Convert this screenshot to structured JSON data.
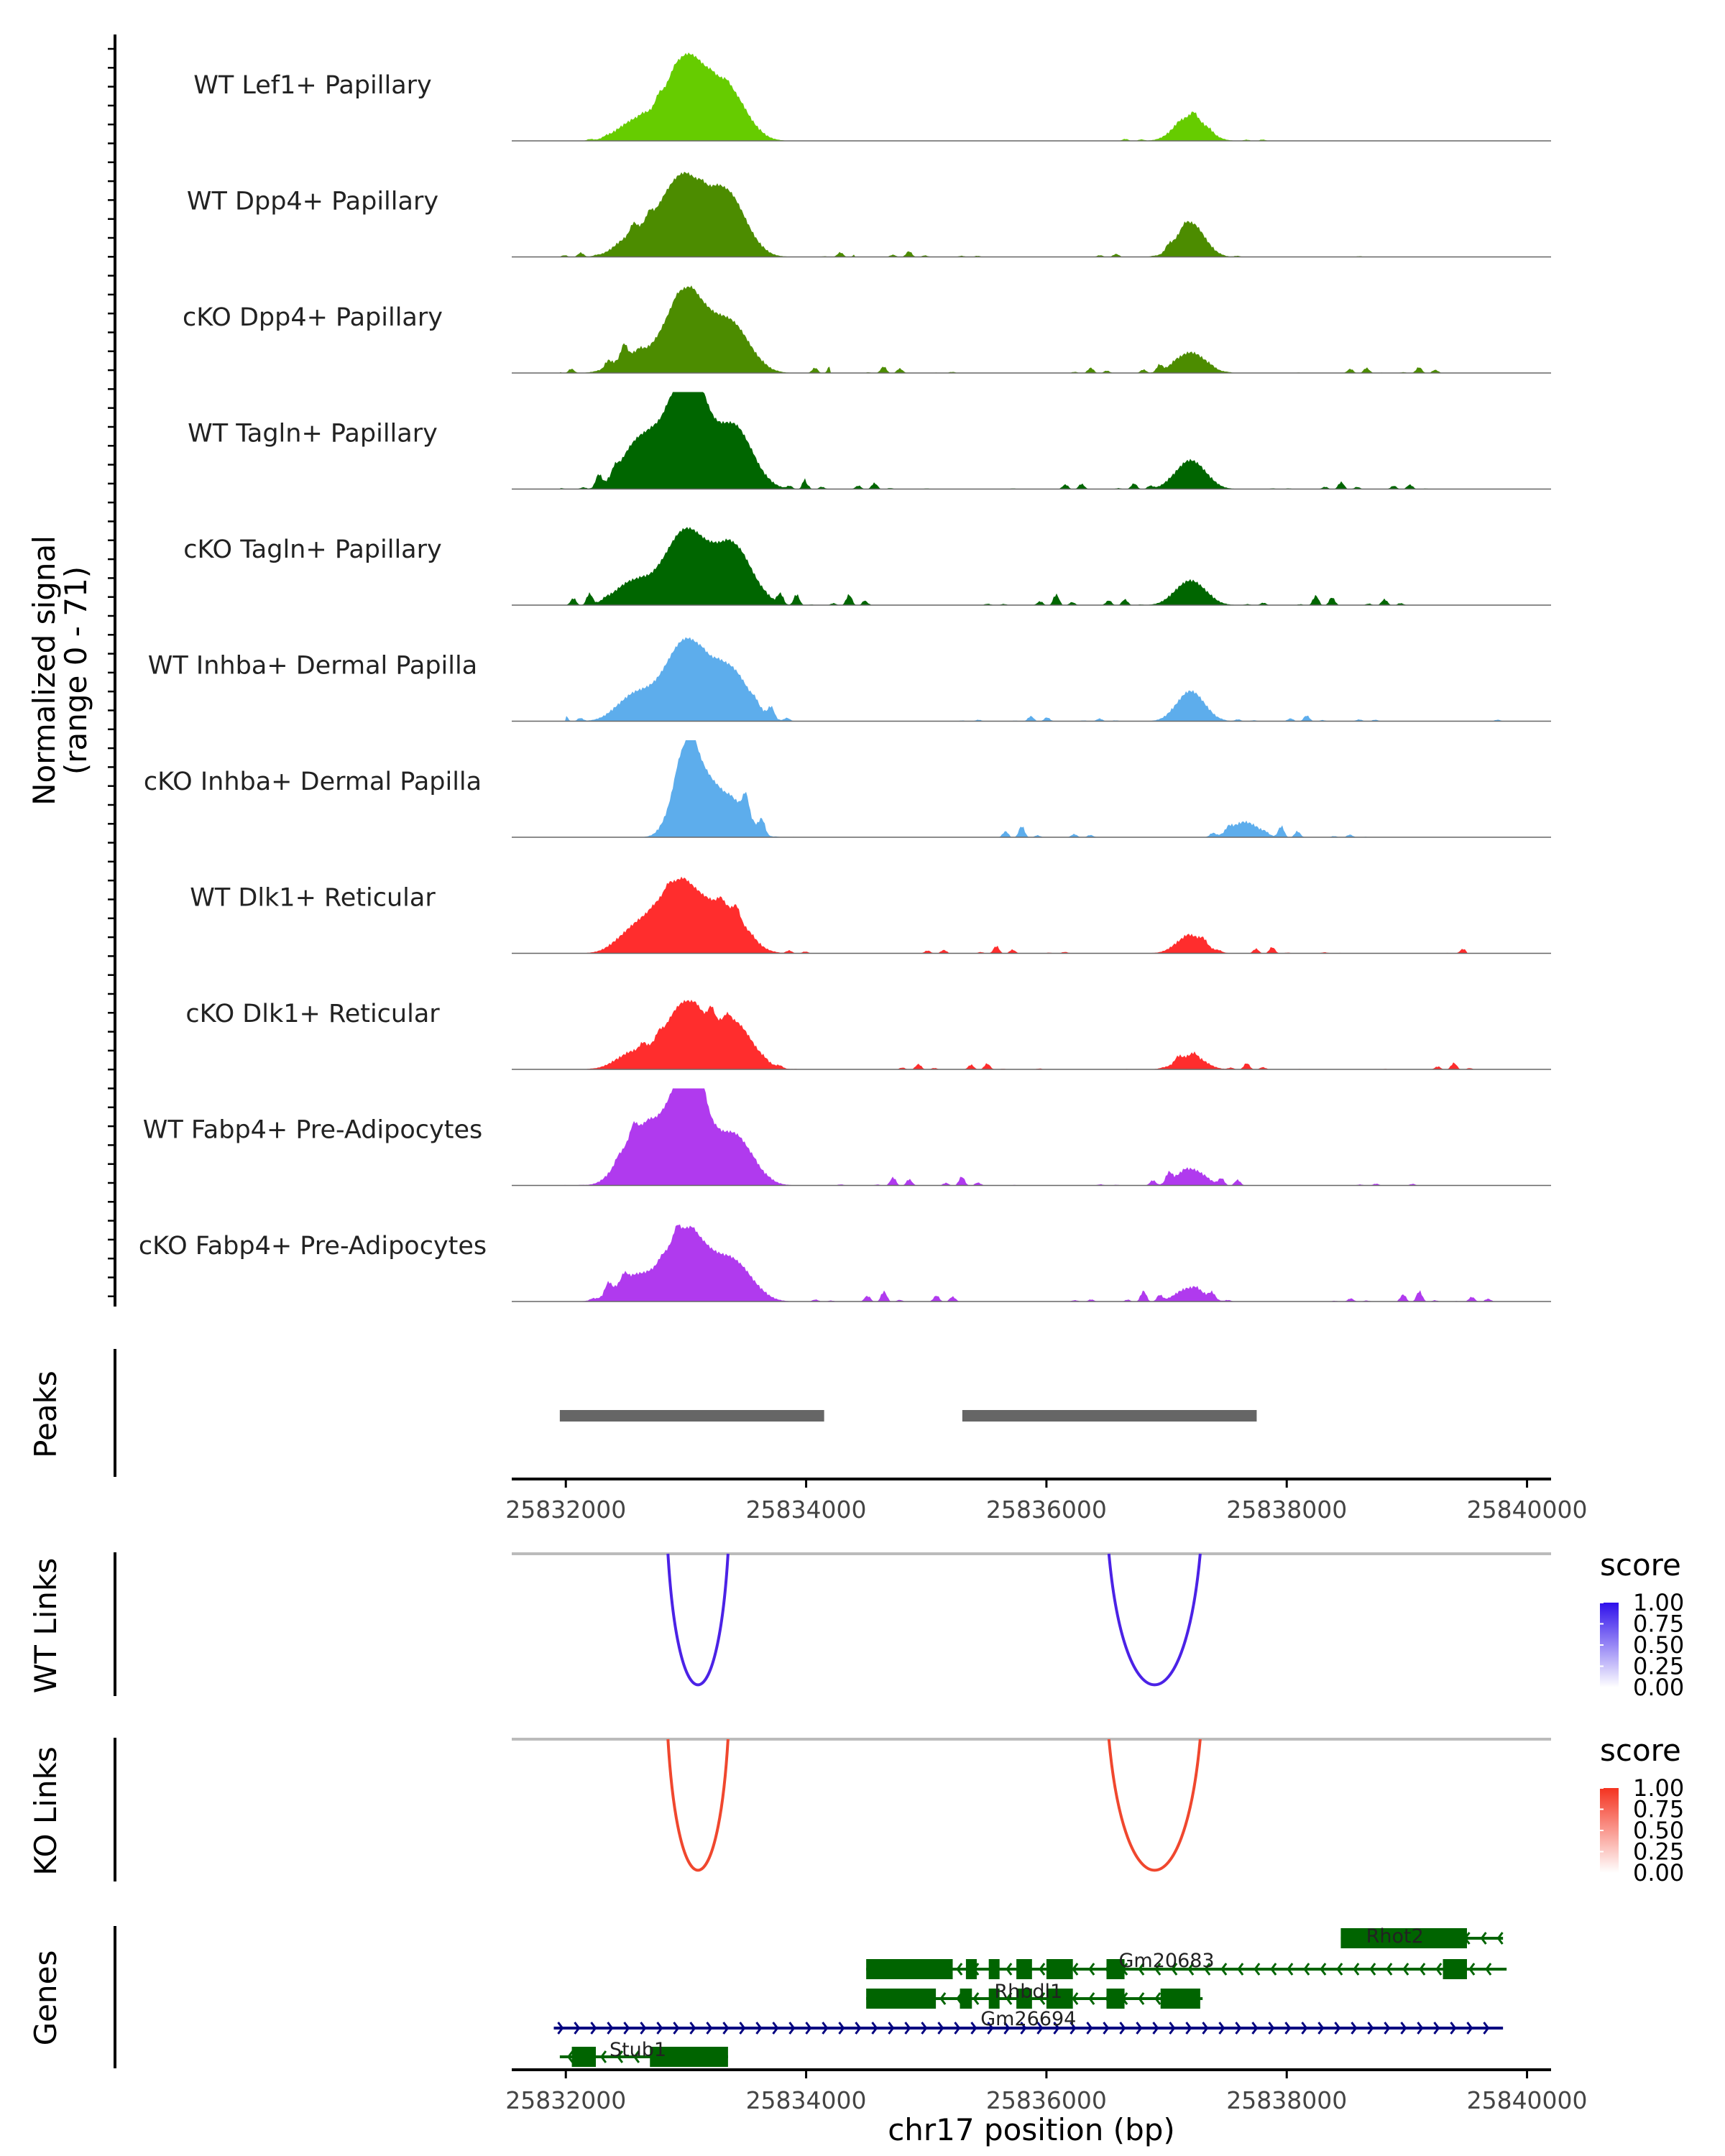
{
  "chart_data": {
    "type": "area",
    "chromosome": "chr17",
    "xlabel": "chr17 position (bp)",
    "xlim": [
      25831550,
      25840200
    ],
    "x_ticks": [
      25832000,
      25834000,
      25836000,
      25838000,
      25840000
    ],
    "x_tick_labels": [
      "25832000",
      "25834000",
      "25836000",
      "25838000",
      "25840000"
    ],
    "coverage": {
      "ylabel_line1": "Normalized signal",
      "ylabel_line2": "(range 0 - 71)",
      "ylim": [
        0,
        71
      ],
      "tracks": [
        {
          "name": "WT Lef1+ Papillary",
          "color": "#66CC00",
          "peaks": [
            [
              25832580,
              13,
              140
            ],
            [
              25833000,
              60,
              170
            ],
            [
              25833350,
              34,
              150
            ],
            [
              25837200,
              17,
              120
            ]
          ],
          "noise": [
            [
              25832000,
              25834100,
              2
            ],
            [
              25836200,
              25838200,
              1.5
            ]
          ]
        },
        {
          "name": "WT Dpp4+ Papillary",
          "color": "#4C8C00",
          "peaks": [
            [
              25832580,
              14,
              140
            ],
            [
              25832970,
              58,
              180
            ],
            [
              25833350,
              42,
              150
            ],
            [
              25837200,
              24,
              110
            ]
          ],
          "noise": [
            [
              25831950,
              25834400,
              3
            ],
            [
              25834600,
              25838700,
              1.5
            ]
          ]
        },
        {
          "name": "cKO Dpp4+ Papillary",
          "color": "#4C8C00",
          "peaks": [
            [
              25832550,
              12,
              140
            ],
            [
              25833000,
              60,
              170
            ],
            [
              25833380,
              33,
              150
            ],
            [
              25837200,
              14,
              120
            ]
          ],
          "noise": [
            [
              25831950,
              25834200,
              4
            ],
            [
              25834500,
              25839600,
              2
            ]
          ]
        },
        {
          "name": "WT Tagln+ Papillary",
          "color": "#006600",
          "peaks": [
            [
              25832570,
              22,
              130
            ],
            [
              25832900,
              48,
              200
            ],
            [
              25833050,
              52,
              120
            ],
            [
              25833400,
              44,
              150
            ],
            [
              25837200,
              20,
              120
            ]
          ],
          "noise": [
            [
              25831950,
              25834000,
              4
            ],
            [
              25834000,
              25839700,
              2
            ]
          ]
        },
        {
          "name": "cKO Tagln+ Papillary",
          "color": "#006600",
          "peaks": [
            [
              25832550,
              15,
              140
            ],
            [
              25833000,
              54,
              180
            ],
            [
              25833400,
              40,
              150
            ],
            [
              25837200,
              17,
              120
            ]
          ],
          "noise": [
            [
              25831950,
              25834500,
              4
            ],
            [
              25834500,
              25839600,
              3
            ]
          ]
        },
        {
          "name": "WT Inhba+ Dermal Papilla",
          "color": "#5DADEC",
          "peaks": [
            [
              25832570,
              17,
              140
            ],
            [
              25833000,
              58,
              180
            ],
            [
              25833380,
              33,
              150
            ],
            [
              25837200,
              21,
              110
            ]
          ],
          "noise": [
            [
              25832000,
              25834000,
              3
            ],
            [
              25834500,
              25839800,
              1.5
            ]
          ]
        },
        {
          "name": "cKO Inhba+ Dermal Papilla",
          "color": "#5DADEC",
          "peaks": [
            [
              25833020,
              70,
              110
            ],
            [
              25833250,
              28,
              100
            ],
            [
              25833450,
              20,
              100
            ],
            [
              25837650,
              10,
              110
            ]
          ],
          "noise": [
            [
              25832300,
              25833900,
              6
            ],
            [
              25835500,
              25839300,
              3
            ]
          ]
        },
        {
          "name": "WT Dlk1+ Reticular",
          "color": "#FF2D2D",
          "peaks": [
            [
              25832570,
              14,
              140
            ],
            [
              25832950,
              52,
              190
            ],
            [
              25833350,
              28,
              150
            ],
            [
              25837200,
              12,
              110
            ]
          ],
          "noise": [
            [
              25831950,
              25834500,
              3
            ],
            [
              25834500,
              25839500,
              2
            ]
          ]
        },
        {
          "name": "cKO Dlk1+ Reticular",
          "color": "#FF2D2D",
          "peaks": [
            [
              25832570,
              11,
              140
            ],
            [
              25833000,
              48,
              170
            ],
            [
              25833400,
              32,
              150
            ],
            [
              25837200,
              9,
              110
            ]
          ],
          "noise": [
            [
              25831950,
              25834500,
              4
            ],
            [
              25834500,
              25839700,
              2
            ]
          ]
        },
        {
          "name": "WT Fabp4+ Pre-Adipocytes",
          "color": "#B03AEE",
          "peaks": [
            [
              25832570,
              26,
              130
            ],
            [
              25832900,
              50,
              200
            ],
            [
              25833050,
              55,
              110
            ],
            [
              25833400,
              35,
              150
            ],
            [
              25837200,
              11,
              110
            ]
          ],
          "noise": [
            [
              25831950,
              25834500,
              4
            ],
            [
              25834500,
              25839100,
              3
            ]
          ]
        },
        {
          "name": "cKO Fabp4+ Pre-Adipocytes",
          "color": "#B03AEE",
          "peaks": [
            [
              25832550,
              16,
              140
            ],
            [
              25833000,
              52,
              180
            ],
            [
              25833400,
              26,
              150
            ],
            [
              25837200,
              9,
              110
            ]
          ],
          "noise": [
            [
              25831950,
              25834500,
              4
            ],
            [
              25834500,
              25839800,
              3
            ]
          ]
        }
      ]
    },
    "peaks": {
      "label": "Peaks",
      "ranges": [
        [
          25831950,
          25834150
        ],
        [
          25835300,
          25837750
        ]
      ]
    },
    "link_tracks": [
      {
        "label": "WT Links",
        "legend_title": "score",
        "color": "#4B22E6",
        "scale_colors": [
          "#FFFFFF",
          "#2F10EB"
        ],
        "links": [
          [
            25832850,
            25833350,
            1.0
          ],
          [
            25836520,
            25837280,
            1.0
          ]
        ]
      },
      {
        "label": "KO Links",
        "legend_title": "score",
        "color": "#F0472E",
        "scale_colors": [
          "#FFFFFF",
          "#F43320"
        ],
        "links": [
          [
            25832850,
            25833350,
            1.0
          ],
          [
            25836520,
            25837280,
            1.0
          ]
        ]
      }
    ],
    "legend_ticks": [
      "1.00",
      "0.75",
      "0.50",
      "0.25",
      "0.00"
    ],
    "genes": {
      "label": "Genes",
      "items": [
        {
          "name": "Rhot2",
          "strand": "-",
          "color": "#006400",
          "start": 25838450,
          "end": 25839800,
          "exons": [
            [
              25838450,
              25839500
            ]
          ]
        },
        {
          "name": "Gm20683",
          "strand": "-",
          "color": "#006400",
          "start": 25834500,
          "end": 25839830,
          "exons": [
            [
              25834500,
              25835220
            ],
            [
              25835330,
              25835420
            ],
            [
              25835520,
              25835610
            ],
            [
              25835750,
              25835880
            ],
            [
              25836000,
              25836220
            ],
            [
              25836500,
              25836650
            ],
            [
              25839300,
              25839500
            ]
          ]
        },
        {
          "name": "Rhbdl1",
          "strand": "-",
          "color": "#006400",
          "start": 25834500,
          "end": 25837300,
          "exons": [
            [
              25834500,
              25835080
            ],
            [
              25835280,
              25835380
            ],
            [
              25835520,
              25835610
            ],
            [
              25835750,
              25835880
            ],
            [
              25836000,
              25836220
            ],
            [
              25836500,
              25836650
            ],
            [
              25836950,
              25837280
            ]
          ]
        },
        {
          "name": "Gm26694",
          "strand": "+",
          "color": "#000080",
          "start": 25831900,
          "end": 25839800,
          "exons": []
        },
        {
          "name": "Stub1",
          "strand": "-",
          "color": "#006400",
          "start": 25831950,
          "end": 25833350,
          "exons": [
            [
              25832050,
              25832250
            ],
            [
              25832700,
              25833350
            ]
          ]
        }
      ]
    }
  }
}
